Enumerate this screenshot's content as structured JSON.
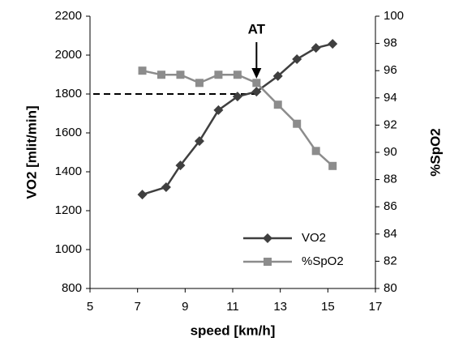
{
  "chart_data": {
    "type": "line",
    "x_label": "speed [km/h]",
    "y_label": "VO2 [mlit/min]",
    "y2_label": "%SpO2",
    "annotation": "AT",
    "annotation_x": 12,
    "reference_y": 1800,
    "xlim": [
      5,
      17
    ],
    "xticks": [
      5,
      7,
      9,
      11,
      13,
      15,
      17
    ],
    "ylim": [
      800,
      2200
    ],
    "yticks": [
      800,
      1000,
      1200,
      1400,
      1600,
      1800,
      2000,
      2200
    ],
    "y2lim": [
      80,
      100
    ],
    "y2ticks": [
      80,
      82,
      84,
      86,
      88,
      90,
      92,
      94,
      96,
      98,
      100
    ],
    "grid": false,
    "legend": "lower right",
    "series": [
      {
        "name": "VO2",
        "color": "#3f3f3f",
        "marker": "diamond",
        "x": [
          7.2,
          8.2,
          8.8,
          9.6,
          10.4,
          11.2,
          12.0,
          12.9,
          13.7,
          14.5,
          15.2
        ],
        "values": [
          1283,
          1321,
          1433,
          1558,
          1717,
          1787,
          1812,
          1892,
          1979,
          2037,
          2058
        ]
      },
      {
        "name": "%SpO2",
        "color": "#8c8c8c",
        "marker": "square",
        "axis": "y2",
        "x": [
          7.2,
          8.0,
          8.8,
          9.6,
          10.4,
          11.2,
          12.0,
          12.9,
          13.7,
          14.5,
          15.2
        ],
        "values": [
          96.0,
          95.7,
          95.7,
          95.1,
          95.7,
          95.7,
          95.1,
          93.5,
          92.1,
          90.1,
          89.0
        ]
      }
    ]
  }
}
